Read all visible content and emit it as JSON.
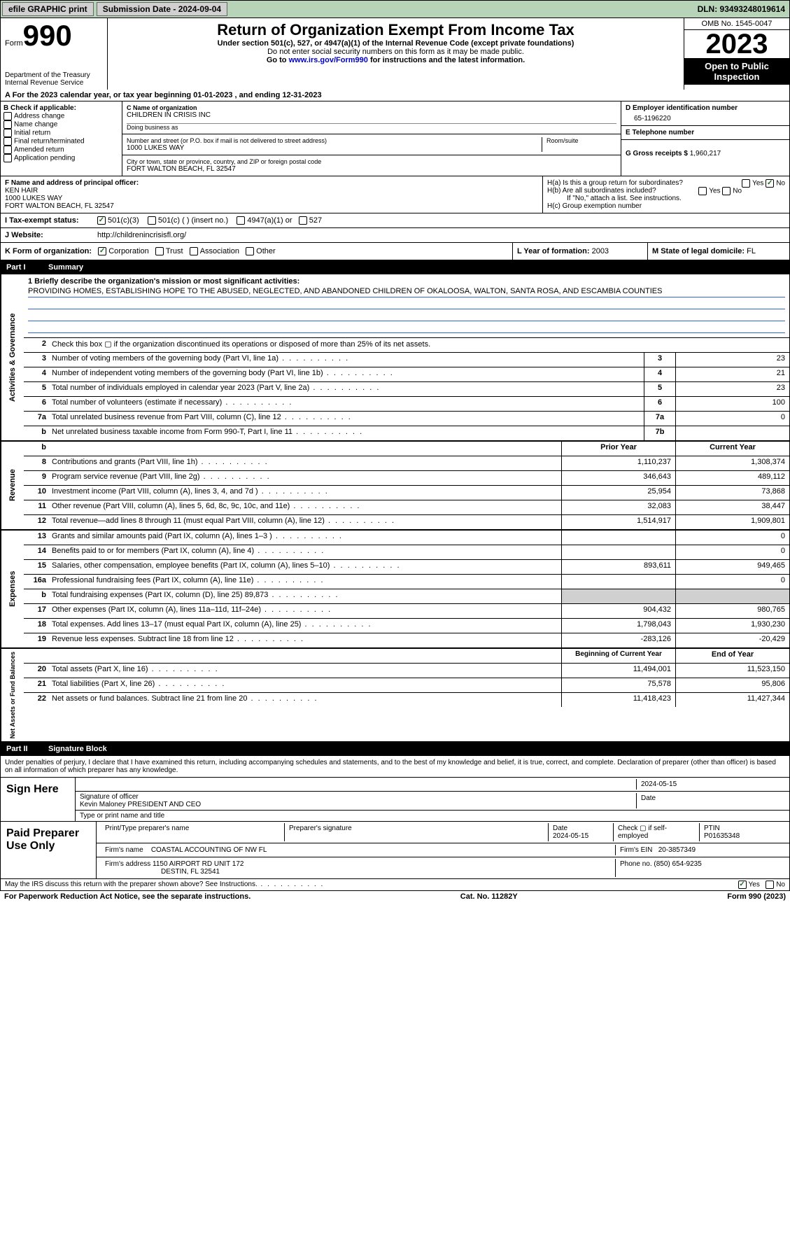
{
  "topbar": {
    "efile": "efile GRAPHIC print",
    "submission_label": "Submission Date - 2024-09-04",
    "dln": "DLN: 93493248019614"
  },
  "header": {
    "form_word": "Form",
    "form_num": "990",
    "dept": "Department of the Treasury",
    "irs": "Internal Revenue Service",
    "title": "Return of Organization Exempt From Income Tax",
    "subtitle": "Under section 501(c), 527, or 4947(a)(1) of the Internal Revenue Code (except private foundations)",
    "note1": "Do not enter social security numbers on this form as it may be made public.",
    "note2": "Go to www.irs.gov/Form990 for instructions and the latest information.",
    "omb": "OMB No. 1545-0047",
    "year": "2023",
    "inspection": "Open to Public Inspection"
  },
  "section_a": "A  For the 2023 calendar year, or tax year beginning 01-01-2023    , and ending 12-31-2023",
  "box_b": {
    "title": "B Check if applicable:",
    "opts": [
      "Address change",
      "Name change",
      "Initial return",
      "Final return/terminated",
      "Amended return",
      "Application pending"
    ]
  },
  "box_c": {
    "name_label": "C Name of organization",
    "name": "CHILDREN IN CRISIS INC",
    "dba_label": "Doing business as",
    "dba": "",
    "street_label": "Number and street (or P.O. box if mail is not delivered to street address)",
    "room_label": "Room/suite",
    "street": "1000 LUKES WAY",
    "city_label": "City or town, state or province, country, and ZIP or foreign postal code",
    "city": "FORT WALTON BEACH, FL  32547"
  },
  "box_d": {
    "label": "D Employer identification number",
    "val": "65-1196220"
  },
  "box_e": {
    "label": "E Telephone number",
    "val": ""
  },
  "box_g": {
    "label": "G Gross receipts $",
    "val": "1,960,217"
  },
  "box_f": {
    "label": "F  Name and address of principal officer:",
    "name": "KEN HAIR",
    "addr1": "1000 LUKES WAY",
    "addr2": "FORT WALTON BEACH, FL  32547"
  },
  "box_h": {
    "a": "H(a)  Is this a group return for subordinates?",
    "b": "H(b)  Are all subordinates included?",
    "b_note": "If \"No,\" attach a list. See instructions.",
    "c": "H(c)  Group exemption number"
  },
  "row_i": {
    "label": "I    Tax-exempt status:",
    "c3": "501(c)(3)",
    "c": "501(c) (  ) (insert no.)",
    "a1": "4947(a)(1) or",
    "527": "527"
  },
  "row_j": {
    "label": "J    Website:",
    "val": "http://childrenincrisisfl.org/"
  },
  "row_k": {
    "label": "K Form of organization:",
    "corp": "Corporation",
    "trust": "Trust",
    "assoc": "Association",
    "other": "Other"
  },
  "row_l": {
    "label": "L Year of formation:",
    "val": "2003"
  },
  "row_m": {
    "label": "M State of legal domicile:",
    "val": "FL"
  },
  "part1": {
    "num": "Part I",
    "title": "Summary"
  },
  "mission": {
    "q": "1   Briefly describe the organization's mission or most significant activities:",
    "text": "PROVIDING HOMES, ESTABLISHING HOPE TO THE ABUSED, NEGLECTED, AND ABANDONED CHILDREN OF OKALOOSA, WALTON, SANTA ROSA, AND ESCAMBIA COUNTIES"
  },
  "gov_rows": [
    {
      "n": "2",
      "t": "Check this box  ▢  if the organization discontinued its operations or disposed of more than 25% of its net assets.",
      "box": "",
      "v": ""
    },
    {
      "n": "3",
      "t": "Number of voting members of the governing body (Part VI, line 1a)",
      "box": "3",
      "v": "23"
    },
    {
      "n": "4",
      "t": "Number of independent voting members of the governing body (Part VI, line 1b)",
      "box": "4",
      "v": "21"
    },
    {
      "n": "5",
      "t": "Total number of individuals employed in calendar year 2023 (Part V, line 2a)",
      "box": "5",
      "v": "23"
    },
    {
      "n": "6",
      "t": "Total number of volunteers (estimate if necessary)",
      "box": "6",
      "v": "100"
    },
    {
      "n": "7a",
      "t": "Total unrelated business revenue from Part VIII, column (C), line 12",
      "box": "7a",
      "v": "0"
    },
    {
      "n": "b",
      "t": "Net unrelated business taxable income from Form 990-T, Part I, line 11",
      "box": "7b",
      "v": ""
    }
  ],
  "rev_head": {
    "p": "Prior Year",
    "c": "Current Year"
  },
  "rev_rows": [
    {
      "n": "8",
      "t": "Contributions and grants (Part VIII, line 1h)",
      "p": "1,110,237",
      "c": "1,308,374"
    },
    {
      "n": "9",
      "t": "Program service revenue (Part VIII, line 2g)",
      "p": "346,643",
      "c": "489,112"
    },
    {
      "n": "10",
      "t": "Investment income (Part VIII, column (A), lines 3, 4, and 7d )",
      "p": "25,954",
      "c": "73,868"
    },
    {
      "n": "11",
      "t": "Other revenue (Part VIII, column (A), lines 5, 6d, 8c, 9c, 10c, and 11e)",
      "p": "32,083",
      "c": "38,447"
    },
    {
      "n": "12",
      "t": "Total revenue—add lines 8 through 11 (must equal Part VIII, column (A), line 12)",
      "p": "1,514,917",
      "c": "1,909,801"
    }
  ],
  "exp_rows": [
    {
      "n": "13",
      "t": "Grants and similar amounts paid (Part IX, column (A), lines 1–3 )",
      "p": "",
      "c": "0"
    },
    {
      "n": "14",
      "t": "Benefits paid to or for members (Part IX, column (A), line 4)",
      "p": "",
      "c": "0"
    },
    {
      "n": "15",
      "t": "Salaries, other compensation, employee benefits (Part IX, column (A), lines 5–10)",
      "p": "893,611",
      "c": "949,465"
    },
    {
      "n": "16a",
      "t": "Professional fundraising fees (Part IX, column (A), line 11e)",
      "p": "",
      "c": "0"
    },
    {
      "n": "b",
      "t": "Total fundraising expenses (Part IX, column (D), line 25) 89,873",
      "p": "gray",
      "c": "gray"
    },
    {
      "n": "17",
      "t": "Other expenses (Part IX, column (A), lines 11a–11d, 11f–24e)",
      "p": "904,432",
      "c": "980,765"
    },
    {
      "n": "18",
      "t": "Total expenses. Add lines 13–17 (must equal Part IX, column (A), line 25)",
      "p": "1,798,043",
      "c": "1,930,230"
    },
    {
      "n": "19",
      "t": "Revenue less expenses. Subtract line 18 from line 12",
      "p": "-283,126",
      "c": "-20,429"
    }
  ],
  "net_head": {
    "p": "Beginning of Current Year",
    "c": "End of Year"
  },
  "net_rows": [
    {
      "n": "20",
      "t": "Total assets (Part X, line 16)",
      "p": "11,494,001",
      "c": "11,523,150"
    },
    {
      "n": "21",
      "t": "Total liabilities (Part X, line 26)",
      "p": "75,578",
      "c": "95,806"
    },
    {
      "n": "22",
      "t": "Net assets or fund balances. Subtract line 21 from line 20",
      "p": "11,418,423",
      "c": "11,427,344"
    }
  ],
  "side_labels": {
    "gov": "Activities & Governance",
    "rev": "Revenue",
    "exp": "Expenses",
    "net": "Net Assets or Fund Balances"
  },
  "part2": {
    "num": "Part II",
    "title": "Signature Block"
  },
  "sig": {
    "perjury": "Under penalties of perjury, I declare that I have examined this return, including accompanying schedules and statements, and to the best of my knowledge and belief, it is true, correct, and complete. Declaration of preparer (other than officer) is based on all information of which preparer has any knowledge.",
    "sign_here": "Sign Here",
    "officer_sig": "Signature of officer",
    "date1": "2024-05-15",
    "officer_name": "Kevin Maloney  PRESIDENT AND CEO",
    "type_name": "Type or print name and title",
    "date_lbl": "Date"
  },
  "paid": {
    "label": "Paid Preparer Use Only",
    "print_name": "Print/Type preparer's name",
    "prep_sig": "Preparer's signature",
    "date": "Date",
    "date_val": "2024-05-15",
    "check": "Check ▢ if self-employed",
    "ptin": "PTIN",
    "ptin_val": "P01635348",
    "firm_name": "Firm's name",
    "firm_name_val": "COASTAL ACCOUNTING OF NW FL",
    "firm_ein": "Firm's EIN",
    "firm_ein_val": "20-3857349",
    "firm_addr": "Firm's address",
    "firm_addr_val": "1150 AIRPORT RD UNIT 172",
    "firm_city": "DESTIN, FL  32541",
    "phone": "Phone no.",
    "phone_val": "(850) 654-9235"
  },
  "discuss": "May the IRS discuss this return with the preparer shown above? See Instructions.",
  "foot": {
    "pra": "For Paperwork Reduction Act Notice, see the separate instructions.",
    "cat": "Cat. No. 11282Y",
    "form": "Form 990 (2023)"
  },
  "yes": "Yes",
  "no": "No"
}
